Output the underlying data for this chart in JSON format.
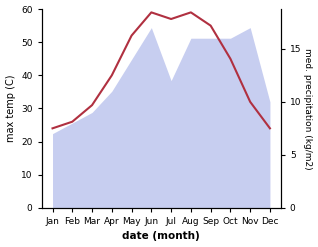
{
  "months": [
    "Jan",
    "Feb",
    "Mar",
    "Apr",
    "May",
    "Jun",
    "Jul",
    "Aug",
    "Sep",
    "Oct",
    "Nov",
    "Dec"
  ],
  "temp": [
    24,
    26,
    31,
    40,
    52,
    59,
    57,
    59,
    55,
    45,
    32,
    24
  ],
  "precip": [
    7,
    8,
    9,
    11,
    14,
    17,
    12,
    16,
    16,
    16,
    17,
    10
  ],
  "temp_color": "#b03040",
  "precip_color": "#aab4e8",
  "precip_alpha": 0.65,
  "ylabel_left": "max temp (C)",
  "ylabel_right": "med. precipitation (kg/m2)",
  "xlabel": "date (month)",
  "ylim_left": [
    0,
    60
  ],
  "ylim_right": [
    0,
    18.75
  ],
  "yticks_left": [
    0,
    10,
    20,
    30,
    40,
    50,
    60
  ],
  "yticks_right": [
    0,
    5,
    10,
    15
  ],
  "background_color": "#ffffff",
  "fig_width": 3.18,
  "fig_height": 2.47,
  "dpi": 100
}
